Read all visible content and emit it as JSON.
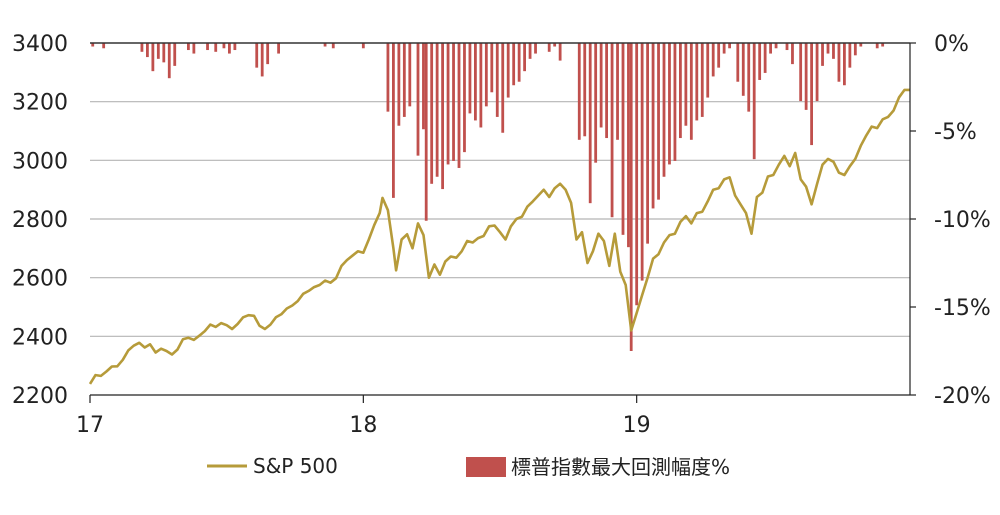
{
  "chart_data": {
    "type": "line+bar",
    "title": "",
    "x_axis": {
      "ticks": [
        {
          "label": "17",
          "value": 2017.0
        },
        {
          "label": "18",
          "value": 2018.0
        },
        {
          "label": "19",
          "value": 2019.0
        }
      ],
      "range": [
        2017.0,
        2020.0
      ]
    },
    "y_left": {
      "ticks": [
        "3400",
        "3200",
        "3000",
        "2800",
        "2600",
        "2400",
        "2200"
      ],
      "range": [
        2200,
        3400
      ]
    },
    "y_right": {
      "ticks": [
        "0%",
        "-5%",
        "-10%",
        "-15%",
        "-20%"
      ],
      "range": [
        -20,
        0
      ]
    },
    "grid": true,
    "legend_position": "bottom",
    "legend": [
      {
        "label": "S&P 500",
        "color": "#b69b3a",
        "kind": "line"
      },
      {
        "label": "標普指數最大回測幅度%",
        "color": "#c0504d",
        "kind": "bar"
      }
    ],
    "series": [
      {
        "name": "S&P 500",
        "axis": "left",
        "color": "#b69b3a",
        "points": [
          [
            2017.0,
            2238
          ],
          [
            2017.02,
            2268
          ],
          [
            2017.04,
            2265
          ],
          [
            2017.06,
            2280
          ],
          [
            2017.08,
            2297
          ],
          [
            2017.1,
            2298
          ],
          [
            2017.12,
            2320
          ],
          [
            2017.14,
            2352
          ],
          [
            2017.16,
            2368
          ],
          [
            2017.18,
            2378
          ],
          [
            2017.2,
            2362
          ],
          [
            2017.22,
            2373
          ],
          [
            2017.24,
            2345
          ],
          [
            2017.26,
            2358
          ],
          [
            2017.28,
            2350
          ],
          [
            2017.3,
            2338
          ],
          [
            2017.32,
            2355
          ],
          [
            2017.34,
            2390
          ],
          [
            2017.36,
            2395
          ],
          [
            2017.38,
            2388
          ],
          [
            2017.4,
            2402
          ],
          [
            2017.42,
            2418
          ],
          [
            2017.44,
            2440
          ],
          [
            2017.46,
            2432
          ],
          [
            2017.48,
            2445
          ],
          [
            2017.5,
            2438
          ],
          [
            2017.52,
            2425
          ],
          [
            2017.54,
            2442
          ],
          [
            2017.56,
            2465
          ],
          [
            2017.58,
            2472
          ],
          [
            2017.6,
            2470
          ],
          [
            2017.62,
            2436
          ],
          [
            2017.64,
            2425
          ],
          [
            2017.66,
            2440
          ],
          [
            2017.68,
            2465
          ],
          [
            2017.7,
            2475
          ],
          [
            2017.72,
            2495
          ],
          [
            2017.74,
            2505
          ],
          [
            2017.76,
            2520
          ],
          [
            2017.78,
            2545
          ],
          [
            2017.8,
            2555
          ],
          [
            2017.82,
            2568
          ],
          [
            2017.84,
            2575
          ],
          [
            2017.86,
            2590
          ],
          [
            2017.88,
            2583
          ],
          [
            2017.9,
            2598
          ],
          [
            2017.92,
            2640
          ],
          [
            2017.94,
            2660
          ],
          [
            2017.96,
            2675
          ],
          [
            2017.98,
            2690
          ],
          [
            2018.0,
            2685
          ],
          [
            2018.02,
            2730
          ],
          [
            2018.04,
            2780
          ],
          [
            2018.06,
            2820
          ],
          [
            2018.07,
            2872
          ],
          [
            2018.09,
            2830
          ],
          [
            2018.11,
            2700
          ],
          [
            2018.12,
            2625
          ],
          [
            2018.14,
            2730
          ],
          [
            2018.16,
            2748
          ],
          [
            2018.18,
            2700
          ],
          [
            2018.2,
            2785
          ],
          [
            2018.22,
            2745
          ],
          [
            2018.24,
            2600
          ],
          [
            2018.26,
            2645
          ],
          [
            2018.28,
            2610
          ],
          [
            2018.3,
            2655
          ],
          [
            2018.32,
            2672
          ],
          [
            2018.34,
            2668
          ],
          [
            2018.36,
            2690
          ],
          [
            2018.38,
            2725
          ],
          [
            2018.4,
            2720
          ],
          [
            2018.42,
            2735
          ],
          [
            2018.44,
            2742
          ],
          [
            2018.46,
            2775
          ],
          [
            2018.48,
            2778
          ],
          [
            2018.5,
            2755
          ],
          [
            2018.52,
            2730
          ],
          [
            2018.54,
            2775
          ],
          [
            2018.56,
            2800
          ],
          [
            2018.58,
            2808
          ],
          [
            2018.6,
            2842
          ],
          [
            2018.62,
            2860
          ],
          [
            2018.64,
            2880
          ],
          [
            2018.66,
            2900
          ],
          [
            2018.68,
            2875
          ],
          [
            2018.7,
            2905
          ],
          [
            2018.72,
            2920
          ],
          [
            2018.74,
            2900
          ],
          [
            2018.76,
            2855
          ],
          [
            2018.78,
            2730
          ],
          [
            2018.8,
            2755
          ],
          [
            2018.82,
            2650
          ],
          [
            2018.84,
            2690
          ],
          [
            2018.86,
            2750
          ],
          [
            2018.88,
            2725
          ],
          [
            2018.9,
            2640
          ],
          [
            2018.92,
            2750
          ],
          [
            2018.94,
            2620
          ],
          [
            2018.96,
            2575
          ],
          [
            2018.98,
            2420
          ],
          [
            2019.0,
            2480
          ],
          [
            2019.02,
            2540
          ],
          [
            2019.04,
            2600
          ],
          [
            2019.06,
            2665
          ],
          [
            2019.08,
            2680
          ],
          [
            2019.1,
            2720
          ],
          [
            2019.12,
            2745
          ],
          [
            2019.14,
            2750
          ],
          [
            2019.16,
            2790
          ],
          [
            2019.18,
            2810
          ],
          [
            2019.2,
            2785
          ],
          [
            2019.22,
            2820
          ],
          [
            2019.24,
            2825
          ],
          [
            2019.26,
            2860
          ],
          [
            2019.28,
            2900
          ],
          [
            2019.3,
            2905
          ],
          [
            2019.32,
            2935
          ],
          [
            2019.34,
            2942
          ],
          [
            2019.36,
            2880
          ],
          [
            2019.38,
            2850
          ],
          [
            2019.4,
            2820
          ],
          [
            2019.42,
            2750
          ],
          [
            2019.44,
            2875
          ],
          [
            2019.46,
            2890
          ],
          [
            2019.48,
            2945
          ],
          [
            2019.5,
            2950
          ],
          [
            2019.52,
            2985
          ],
          [
            2019.54,
            3015
          ],
          [
            2019.56,
            2980
          ],
          [
            2019.58,
            3025
          ],
          [
            2019.6,
            2935
          ],
          [
            2019.62,
            2910
          ],
          [
            2019.64,
            2850
          ],
          [
            2019.66,
            2920
          ],
          [
            2019.68,
            2985
          ],
          [
            2019.7,
            3005
          ],
          [
            2019.72,
            2995
          ],
          [
            2019.74,
            2958
          ],
          [
            2019.76,
            2950
          ],
          [
            2019.78,
            2980
          ],
          [
            2019.8,
            3005
          ],
          [
            2019.82,
            3050
          ],
          [
            2019.84,
            3085
          ],
          [
            2019.86,
            3115
          ],
          [
            2019.88,
            3110
          ],
          [
            2019.9,
            3140
          ],
          [
            2019.92,
            3148
          ],
          [
            2019.94,
            3170
          ],
          [
            2019.96,
            3215
          ],
          [
            2019.98,
            3240
          ],
          [
            2020.0,
            3240
          ]
        ]
      },
      {
        "name": "標普指數最大回測幅度%",
        "axis": "right",
        "color": "#c0504d",
        "points": [
          [
            2017.01,
            -0.2
          ],
          [
            2017.05,
            -0.3
          ],
          [
            2017.19,
            -0.5
          ],
          [
            2017.21,
            -0.8
          ],
          [
            2017.23,
            -1.6
          ],
          [
            2017.25,
            -0.9
          ],
          [
            2017.27,
            -1.1
          ],
          [
            2017.29,
            -2.0
          ],
          [
            2017.31,
            -1.3
          ],
          [
            2017.36,
            -0.4
          ],
          [
            2017.38,
            -0.6
          ],
          [
            2017.43,
            -0.4
          ],
          [
            2017.46,
            -0.5
          ],
          [
            2017.49,
            -0.3
          ],
          [
            2017.51,
            -0.6
          ],
          [
            2017.53,
            -0.4
          ],
          [
            2017.61,
            -1.4
          ],
          [
            2017.63,
            -1.9
          ],
          [
            2017.65,
            -1.2
          ],
          [
            2017.69,
            -0.6
          ],
          [
            2017.86,
            -0.2
          ],
          [
            2017.89,
            -0.3
          ],
          [
            2018.0,
            -0.3
          ],
          [
            2018.09,
            -3.9
          ],
          [
            2018.11,
            -8.8
          ],
          [
            2018.13,
            -4.7
          ],
          [
            2018.15,
            -4.2
          ],
          [
            2018.17,
            -3.6
          ],
          [
            2018.2,
            -6.4
          ],
          [
            2018.22,
            -4.9
          ],
          [
            2018.23,
            -10.1
          ],
          [
            2018.25,
            -8.0
          ],
          [
            2018.27,
            -7.6
          ],
          [
            2018.29,
            -8.3
          ],
          [
            2018.31,
            -6.9
          ],
          [
            2018.33,
            -6.7
          ],
          [
            2018.35,
            -7.1
          ],
          [
            2018.37,
            -6.2
          ],
          [
            2018.39,
            -4.0
          ],
          [
            2018.41,
            -4.4
          ],
          [
            2018.43,
            -4.8
          ],
          [
            2018.45,
            -3.6
          ],
          [
            2018.47,
            -2.8
          ],
          [
            2018.49,
            -4.2
          ],
          [
            2018.51,
            -5.1
          ],
          [
            2018.53,
            -3.1
          ],
          [
            2018.55,
            -2.4
          ],
          [
            2018.57,
            -2.2
          ],
          [
            2018.59,
            -1.6
          ],
          [
            2018.61,
            -0.9
          ],
          [
            2018.63,
            -0.6
          ],
          [
            2018.68,
            -0.5
          ],
          [
            2018.7,
            -0.2
          ],
          [
            2018.72,
            -1.0
          ],
          [
            2018.79,
            -5.5
          ],
          [
            2018.81,
            -5.3
          ],
          [
            2018.83,
            -9.1
          ],
          [
            2018.85,
            -6.8
          ],
          [
            2018.87,
            -4.8
          ],
          [
            2018.89,
            -5.4
          ],
          [
            2018.91,
            -9.9
          ],
          [
            2018.93,
            -5.5
          ],
          [
            2018.95,
            -10.9
          ],
          [
            2018.97,
            -11.6
          ],
          [
            2018.98,
            -17.5
          ],
          [
            2019.0,
            -14.9
          ],
          [
            2019.02,
            -13.5
          ],
          [
            2019.04,
            -11.4
          ],
          [
            2019.06,
            -9.4
          ],
          [
            2019.08,
            -8.9
          ],
          [
            2019.1,
            -7.6
          ],
          [
            2019.12,
            -6.9
          ],
          [
            2019.14,
            -6.7
          ],
          [
            2019.16,
            -5.4
          ],
          [
            2019.18,
            -4.7
          ],
          [
            2019.2,
            -5.5
          ],
          [
            2019.22,
            -4.4
          ],
          [
            2019.24,
            -4.2
          ],
          [
            2019.26,
            -3.1
          ],
          [
            2019.28,
            -1.9
          ],
          [
            2019.3,
            -1.4
          ],
          [
            2019.32,
            -0.6
          ],
          [
            2019.34,
            -0.3
          ],
          [
            2019.37,
            -2.2
          ],
          [
            2019.39,
            -3.0
          ],
          [
            2019.41,
            -3.9
          ],
          [
            2019.43,
            -6.6
          ],
          [
            2019.45,
            -2.1
          ],
          [
            2019.47,
            -1.7
          ],
          [
            2019.49,
            -0.6
          ],
          [
            2019.51,
            -0.3
          ],
          [
            2019.55,
            -0.4
          ],
          [
            2019.57,
            -1.2
          ],
          [
            2019.6,
            -3.3
          ],
          [
            2019.62,
            -3.8
          ],
          [
            2019.64,
            -5.8
          ],
          [
            2019.66,
            -3.3
          ],
          [
            2019.68,
            -1.3
          ],
          [
            2019.7,
            -0.6
          ],
          [
            2019.72,
            -0.9
          ],
          [
            2019.74,
            -2.2
          ],
          [
            2019.76,
            -2.4
          ],
          [
            2019.78,
            -1.4
          ],
          [
            2019.8,
            -0.7
          ],
          [
            2019.82,
            -0.2
          ],
          [
            2019.88,
            -0.3
          ],
          [
            2019.9,
            -0.2
          ]
        ]
      }
    ]
  }
}
